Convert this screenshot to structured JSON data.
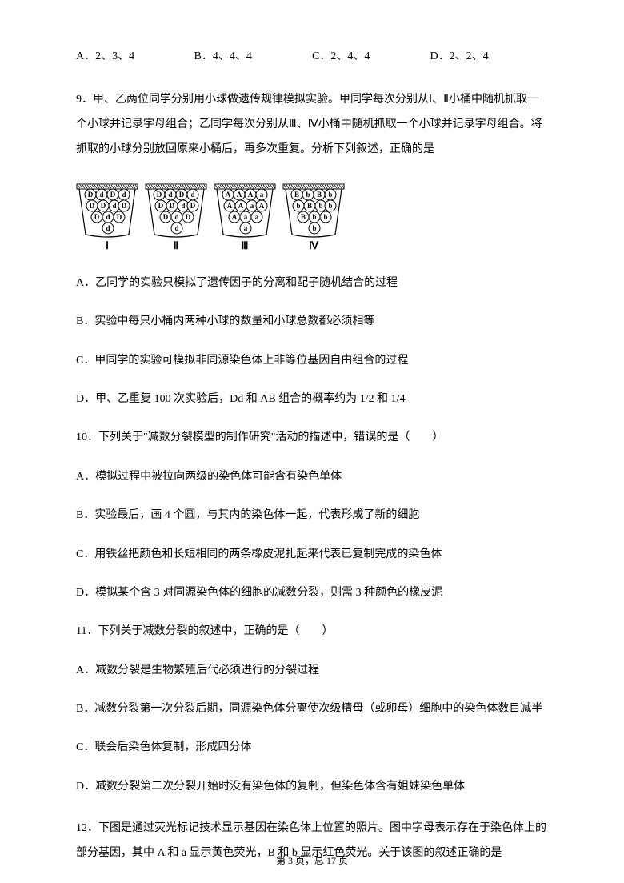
{
  "q8": {
    "optA": "A．2、3、4",
    "optB": "B．4、4、4",
    "optC": "C．2、4、4",
    "optD": "D．2、2、4"
  },
  "q9": {
    "stem": "9．甲、乙两位同学分别用小球做遗传规律模拟实验。甲同学每次分别从Ⅰ、Ⅱ小桶中随机抓取一个小球并记录字母组合；乙同学每次分别从Ⅲ、Ⅳ小桶中随机抓取一个小球并记录字母组合。将抓取的小球分别放回原来小桶后，再多次重复。分析下列叙述，正确的是",
    "buckets": [
      {
        "label": "Ⅰ",
        "balls": [
          "D",
          "d",
          "D",
          "d",
          "D",
          "D",
          "d",
          "D",
          "D",
          "d",
          "D",
          "d"
        ]
      },
      {
        "label": "Ⅱ",
        "balls": [
          "D",
          "d",
          "D",
          "d",
          "D",
          "D",
          "d",
          "D",
          "D",
          "d",
          "D",
          "d"
        ]
      },
      {
        "label": "Ⅲ",
        "balls": [
          "A",
          "A",
          "A",
          "a",
          "A",
          "A",
          "a",
          "A",
          "A",
          "a",
          "a",
          "a"
        ]
      },
      {
        "label": "Ⅳ",
        "balls": [
          "B",
          "b",
          "B",
          "b",
          "b",
          "B",
          "b",
          "b",
          "B",
          "b",
          "b",
          "b"
        ]
      }
    ],
    "optA": "A．乙同学的实验只模拟了遗传因子的分离和配子随机结合的过程",
    "optB": "B．实验中每只小桶内两种小球的数量和小球总数都必须相等",
    "optC": "C．甲同学的实验可模拟非同源染色体上非等位基因自由组合的过程",
    "optD": "D．甲、乙重复 100 次实验后，Dd 和 AB 组合的概率约为 1/2 和 1/4"
  },
  "q10": {
    "stem": "10．下列关于\"减数分裂模型的制作研究\"活动的描述中，错误的是（　　）",
    "optA": "A．模拟过程中被拉向两级的染色体可能含有染色单体",
    "optB": "B．实验最后，画 4 个圆，与其内的染色体一起，代表形成了新的细胞",
    "optC": "C．用铁丝把颜色和长短相同的两条橡皮泥扎起来代表已复制完成的染色体",
    "optD": "D．模拟某个含 3 对同源染色体的细胞的减数分裂，则需 3 种颜色的橡皮泥"
  },
  "q11": {
    "stem": "11．下列关于减数分裂的叙述中，正确的是（　　）",
    "optA": "A．减数分裂是生物繁殖后代必须进行的分裂过程",
    "optB": "B．减数分裂第一次分裂后期，同源染色体分离使次级精母（或卵母）细胞中的染色体数目减半",
    "optC": "C．联会后染色体复制，形成四分体",
    "optD": "D．减数分裂第二次分裂开始时没有染色体的复制，但染色体含有姐妹染色单体"
  },
  "q12": {
    "stem": "12．下图是通过荧光标记技术显示基因在染色体上位置的照片。图中字母表示存在于染色体上的部分基因，其中 A 和 a 显示黄色荧光，B 和 b 显示红色荧光。关于该图的叙述正确的是"
  },
  "footer": "第 3 页，总 17 页",
  "colors": {
    "ball_fill": "#ffffff",
    "ball_stroke": "#000000",
    "bucket_stroke": "#000000",
    "hatch": "#000000"
  }
}
